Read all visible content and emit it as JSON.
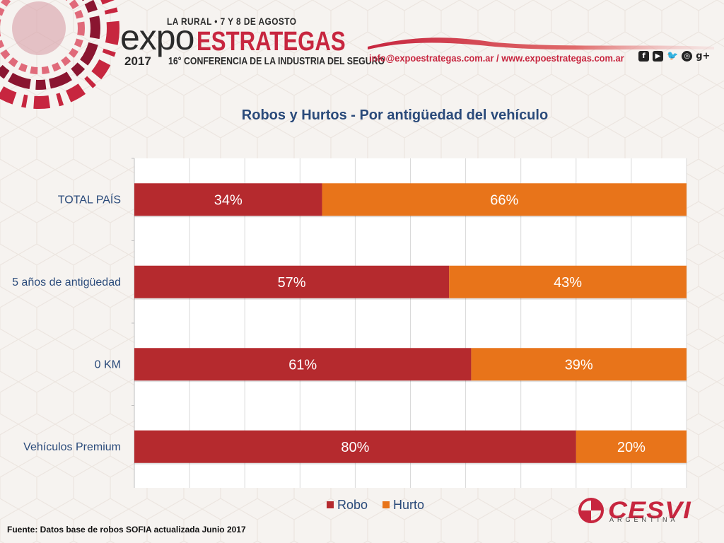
{
  "header": {
    "event_line": "LA RURAL • 7 Y 8 DE AGOSTO",
    "logo_expo": "expo",
    "logo_estrategas": "ESTRATEGAS",
    "year": "2017",
    "conference": "16° CONFERENCIA DE LA INDUSTRIA DEL SEGURO",
    "contact": "info@expoestrategas.com.ar / www.expoestrategas.com.ar",
    "social_icons": [
      "facebook-icon",
      "youtube-icon",
      "twitter-icon",
      "instagram-icon",
      "google-plus-icon"
    ]
  },
  "chart_data": {
    "type": "bar",
    "orientation": "horizontal",
    "stacked": true,
    "title": "Robos y Hurtos - Por antigüedad del vehículo",
    "categories": [
      "TOTAL PAÍS",
      "5 años de antigüedad",
      "0 KM",
      "Vehículos Premium"
    ],
    "series": [
      {
        "name": "Robo",
        "values": [
          34,
          57,
          61,
          80
        ],
        "labels": [
          "34%",
          "57%",
          "61%",
          "80%"
        ],
        "color": "#b52a2e"
      },
      {
        "name": "Hurto",
        "values": [
          66,
          43,
          39,
          20
        ],
        "labels": [
          "66%",
          "43%",
          "39%",
          "20%"
        ],
        "color": "#e8741a"
      }
    ],
    "xlim": [
      0,
      100
    ],
    "grid": true,
    "legend": "bottom"
  },
  "footer": {
    "source": "Fuente: Datos base de robos SOFIA actualizada Junio 2017",
    "brand": "CESVI",
    "brand_sub": "ARGENTINA"
  }
}
